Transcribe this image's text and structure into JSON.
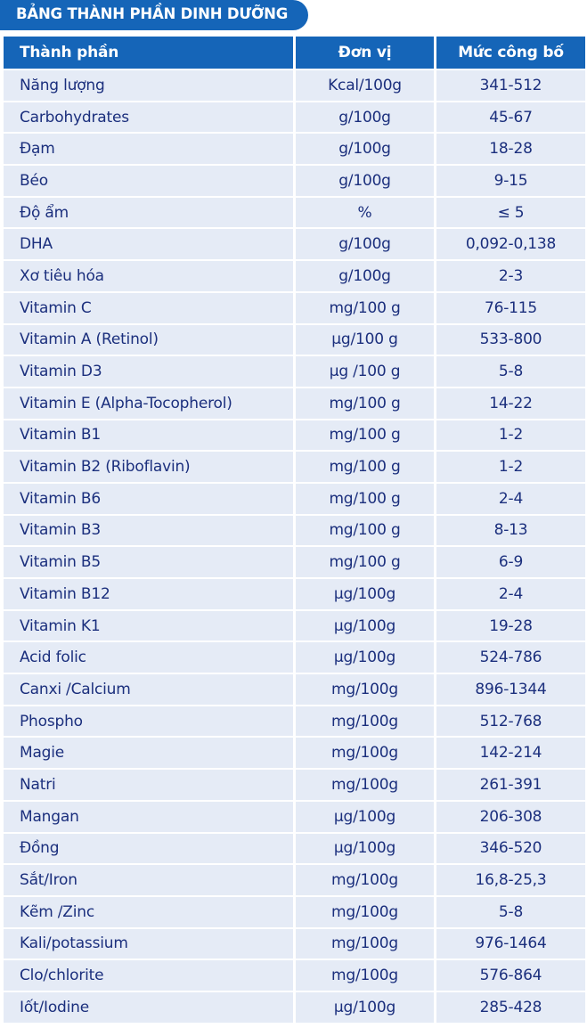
{
  "title": "BẢNG THÀNH PHẦN DINH DƯỠNG",
  "headers": [
    "Thành phần",
    "Đơn vị",
    "Mức công bố"
  ],
  "rows": [
    [
      "Năng lượng",
      "Kcal/100g",
      "341-512"
    ],
    [
      "Carbohydrates",
      "g/100g",
      "45-67"
    ],
    [
      "Đạm",
      "g/100g",
      "18-28"
    ],
    [
      "Béo",
      "g/100g",
      "9-15"
    ],
    [
      "Độ ẩm",
      "%",
      "≤ 5"
    ],
    [
      "DHA",
      "g/100g",
      "0,092-0,138"
    ],
    [
      "Xơ tiêu hóa",
      "g/100g",
      "2-3"
    ],
    [
      "Vitamin C",
      "mg/100 g",
      "76-115"
    ],
    [
      "Vitamin A (Retinol)",
      "μg/100 g",
      "533-800"
    ],
    [
      "Vitamin D3",
      "μg /100 g",
      "5-8"
    ],
    [
      "Vitamin E (Alpha-Tocopherol)",
      "mg/100 g",
      "14-22"
    ],
    [
      "Vitamin B1",
      "mg/100 g",
      "1-2"
    ],
    [
      "Vitamin B2 (Riboflavin)",
      "mg/100 g",
      "1-2"
    ],
    [
      "Vitamin B6",
      "mg/100 g",
      "2-4"
    ],
    [
      "Vitamin B3",
      "mg/100 g",
      "8-13"
    ],
    [
      "Vitamin B5",
      "mg/100 g",
      "6-9"
    ],
    [
      "Vitamin B12",
      "μg/100g",
      "2-4"
    ],
    [
      "Vitamin K1",
      "μg/100g",
      "19-28"
    ],
    [
      "Acid folic",
      "μg/100g",
      "524-786"
    ],
    [
      "Canxi /Calcium",
      "mg/100g",
      "896-1344"
    ],
    [
      "Phospho",
      "mg/100g",
      "512-768"
    ],
    [
      "Magie",
      "mg/100g",
      "142-214"
    ],
    [
      "Natri",
      "mg/100g",
      "261-391"
    ],
    [
      "Mangan",
      "μg/100g",
      "206-308"
    ],
    [
      "Đồng",
      "μg/100g",
      "346-520"
    ],
    [
      "Sắt/Iron",
      "mg/100g",
      "16,8-25,3"
    ],
    [
      "Kẽm /Zinc",
      "mg/100g",
      "5-8"
    ],
    [
      "Kali/potassium",
      "mg/100g",
      "976-1464"
    ],
    [
      "Clo/chlorite",
      "mg/100g",
      "576-864"
    ],
    [
      "Iốt/Iodine",
      "μg/100g",
      "285-428"
    ]
  ],
  "colors": {
    "header_bg": "#1565b8",
    "row_bg": "#e5ebf6",
    "text": "#1b2f7d"
  }
}
